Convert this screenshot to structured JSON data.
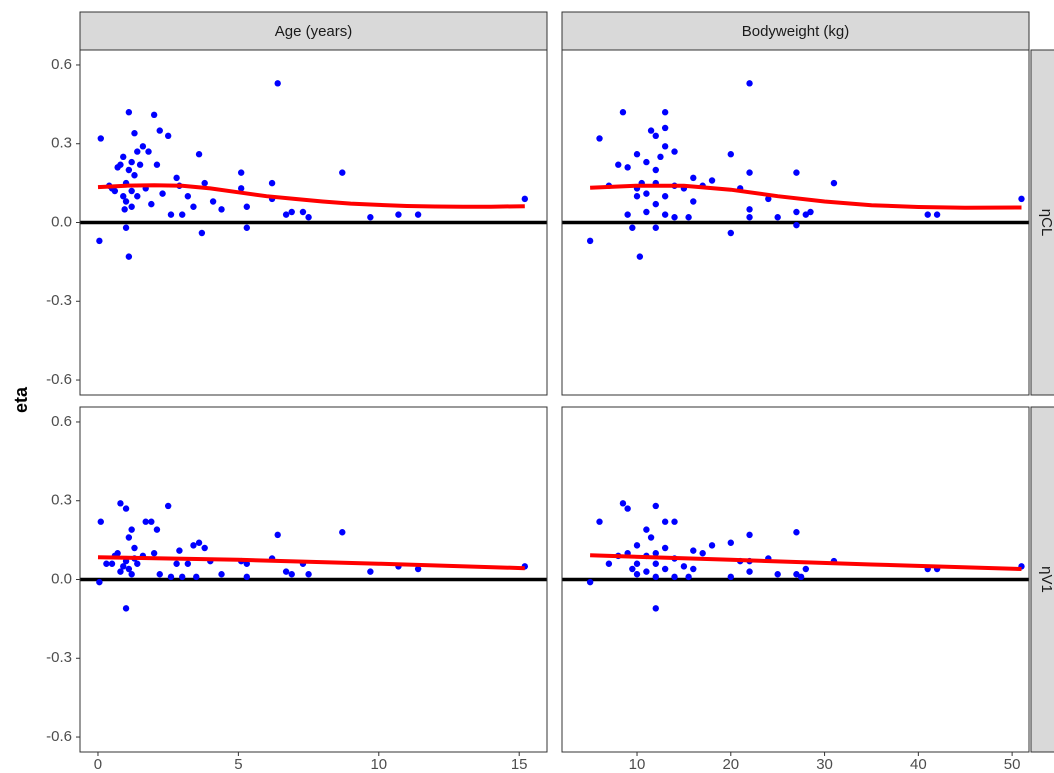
{
  "y_axis_title": "eta",
  "chart_data": [
    {
      "type": "scatter",
      "strip_top": "Age  (years)",
      "xlim": [
        -0.64,
        15.99
      ],
      "ylim": [
        -0.657,
        0.657
      ],
      "yticks": [
        0.6,
        0.3,
        {
          "value": 0,
          "label": "0.0"
        },
        -0.3,
        -0.6
      ],
      "hline": 0,
      "points": {
        "color": "#0000ff",
        "x": [
          0.1,
          0.05,
          0.4,
          0.5,
          0.6,
          0.7,
          0.8,
          0.9,
          0.9,
          0.95,
          1.0,
          1.0,
          1.0,
          1.1,
          1.1,
          1.1,
          1.2,
          1.2,
          1.2,
          1.3,
          1.3,
          1.4,
          1.4,
          1.5,
          1.6,
          1.7,
          1.8,
          1.9,
          2.0,
          2.1,
          2.2,
          2.3,
          2.5,
          2.6,
          2.8,
          2.9,
          3.0,
          3.2,
          3.4,
          3.6,
          3.7,
          3.8,
          4.1,
          4.4,
          5.1,
          5.1,
          5.3,
          5.3,
          6.2,
          6.2,
          6.4,
          6.7,
          6.9,
          7.3,
          7.5,
          8.7,
          9.7,
          10.7,
          11.4,
          15.2
        ],
        "y": [
          0.32,
          -0.07,
          0.14,
          0.13,
          0.12,
          0.21,
          0.22,
          0.25,
          0.1,
          0.05,
          0.15,
          0.08,
          -0.02,
          0.42,
          0.2,
          -0.13,
          0.23,
          0.12,
          0.06,
          0.34,
          0.18,
          0.27,
          0.1,
          0.22,
          0.29,
          0.13,
          0.27,
          0.07,
          0.41,
          0.22,
          0.35,
          0.11,
          0.33,
          0.03,
          0.17,
          0.14,
          0.03,
          0.1,
          0.06,
          0.26,
          -0.04,
          0.15,
          0.08,
          0.05,
          0.19,
          0.13,
          -0.02,
          0.06,
          0.09,
          0.15,
          0.53,
          0.03,
          0.04,
          0.04,
          0.02,
          0.19,
          0.02,
          0.03,
          0.03,
          0.09
        ]
      },
      "smooth": {
        "color": "#ff0000",
        "x": [
          0,
          1,
          2,
          3,
          4,
          5,
          6,
          7,
          8,
          9,
          10,
          11,
          12,
          13,
          14,
          15.2
        ],
        "y": [
          0.135,
          0.14,
          0.142,
          0.14,
          0.13,
          0.115,
          0.1,
          0.09,
          0.08,
          0.072,
          0.067,
          0.063,
          0.061,
          0.06,
          0.06,
          0.062
        ]
      }
    },
    {
      "type": "scatter",
      "strip_top": "Bodyweight  (kg)",
      "strip_right": "ηCL",
      "xlim": [
        2.0,
        51.8
      ],
      "ylim": [
        -0.657,
        0.657
      ],
      "hline": 0,
      "points": {
        "color": "#0000ff",
        "x": [
          5,
          6,
          7,
          8,
          8.5,
          9,
          9,
          9.5,
          10,
          10,
          10,
          10.3,
          10.5,
          11,
          11,
          11,
          11.5,
          12,
          12,
          12,
          12,
          12,
          12.5,
          13,
          13,
          13,
          13,
          13,
          14,
          14,
          14,
          15,
          15.5,
          16,
          16,
          17,
          18,
          20,
          20,
          21,
          22,
          22,
          22,
          22,
          24,
          25,
          27,
          27,
          27,
          28,
          28.5,
          31,
          41,
          42,
          51
        ],
        "y": [
          -0.07,
          0.32,
          0.14,
          0.22,
          0.42,
          0.21,
          0.03,
          -0.02,
          0.13,
          0.26,
          0.1,
          -0.13,
          0.15,
          0.23,
          0.11,
          0.04,
          0.35,
          0.33,
          0.2,
          0.15,
          0.07,
          -0.02,
          0.25,
          0.42,
          0.36,
          0.29,
          0.1,
          0.03,
          0.27,
          0.14,
          0.02,
          0.13,
          0.02,
          0.17,
          0.08,
          0.14,
          0.16,
          0.26,
          -0.04,
          0.13,
          0.53,
          0.19,
          0.05,
          0.02,
          0.09,
          0.02,
          0.19,
          0.04,
          -0.01,
          0.03,
          0.04,
          0.15,
          0.03,
          0.03,
          0.09
        ]
      },
      "smooth": {
        "color": "#ff0000",
        "x": [
          5,
          10,
          15,
          20,
          25,
          30,
          35,
          40,
          45,
          51
        ],
        "y": [
          0.132,
          0.14,
          0.14,
          0.125,
          0.1,
          0.08,
          0.066,
          0.059,
          0.056,
          0.057
        ]
      }
    },
    {
      "type": "scatter",
      "xlim": [
        -0.64,
        15.99
      ],
      "ylim": [
        -0.657,
        0.657
      ],
      "xticks": [
        0,
        5,
        10,
        15
      ],
      "yticks": [
        0.6,
        0.3,
        {
          "value": 0,
          "label": "0.0"
        },
        -0.3,
        -0.6
      ],
      "hline": 0,
      "points": {
        "color": "#0000ff",
        "x": [
          0.05,
          0.1,
          0.3,
          0.5,
          0.6,
          0.7,
          0.8,
          0.8,
          0.9,
          1.0,
          1.0,
          1.0,
          1.1,
          1.1,
          1.2,
          1.2,
          1.3,
          1.3,
          1.4,
          1.6,
          1.7,
          1.9,
          2.0,
          2.1,
          2.2,
          2.5,
          2.6,
          2.8,
          2.9,
          3.0,
          3.2,
          3.4,
          3.5,
          3.6,
          3.8,
          4.0,
          4.4,
          5.1,
          5.3,
          5.3,
          6.2,
          6.4,
          6.7,
          6.9,
          7.3,
          7.5,
          8.7,
          9.7,
          10.7,
          11.4,
          15.2
        ],
        "y": [
          -0.01,
          0.22,
          0.06,
          0.06,
          0.09,
          0.1,
          0.03,
          0.29,
          0.05,
          0.07,
          0.27,
          -0.11,
          0.04,
          0.16,
          0.19,
          0.02,
          0.08,
          0.12,
          0.06,
          0.09,
          0.22,
          0.22,
          0.1,
          0.19,
          0.02,
          0.28,
          0.01,
          0.06,
          0.11,
          0.01,
          0.06,
          0.13,
          0.01,
          0.14,
          0.12,
          0.07,
          0.02,
          0.07,
          0.06,
          0.01,
          0.08,
          0.17,
          0.03,
          0.02,
          0.06,
          0.02,
          0.18,
          0.03,
          0.05,
          0.04,
          0.05
        ]
      },
      "smooth": {
        "color": "#ff0000",
        "x": [
          0,
          5,
          10,
          15.2
        ],
        "y": [
          0.085,
          0.075,
          0.06,
          0.043
        ]
      }
    },
    {
      "type": "scatter",
      "strip_right": "ηV1",
      "xlim": [
        2.0,
        51.8
      ],
      "ylim": [
        -0.657,
        0.657
      ],
      "xticks": [
        10,
        20,
        30,
        40,
        50
      ],
      "hline": 0,
      "points": {
        "color": "#0000ff",
        "x": [
          5,
          6,
          7,
          8,
          8.5,
          9,
          9,
          9.5,
          10,
          10,
          10,
          11,
          11,
          11,
          11.5,
          12,
          12,
          12,
          12,
          12,
          13,
          13,
          13,
          14,
          14,
          14,
          15,
          15.5,
          16,
          16,
          17,
          18,
          20,
          20,
          21,
          22,
          22,
          22,
          24,
          25,
          27,
          27,
          27.5,
          28,
          31,
          41,
          42,
          51
        ],
        "y": [
          -0.01,
          0.22,
          0.06,
          0.09,
          0.29,
          0.27,
          0.1,
          0.04,
          0.13,
          0.06,
          0.02,
          0.19,
          0.09,
          0.03,
          0.16,
          0.28,
          0.1,
          0.06,
          -0.11,
          0.01,
          0.22,
          0.12,
          0.04,
          0.22,
          0.08,
          0.01,
          0.05,
          0.01,
          0.11,
          0.04,
          0.1,
          0.13,
          0.14,
          0.01,
          0.07,
          0.17,
          0.07,
          0.03,
          0.08,
          0.02,
          0.18,
          0.02,
          0.01,
          0.04,
          0.07,
          0.04,
          0.04,
          0.05
        ]
      },
      "smooth": {
        "color": "#ff0000",
        "x": [
          5,
          20,
          35,
          51
        ],
        "y": [
          0.092,
          0.075,
          0.057,
          0.04
        ]
      }
    }
  ]
}
